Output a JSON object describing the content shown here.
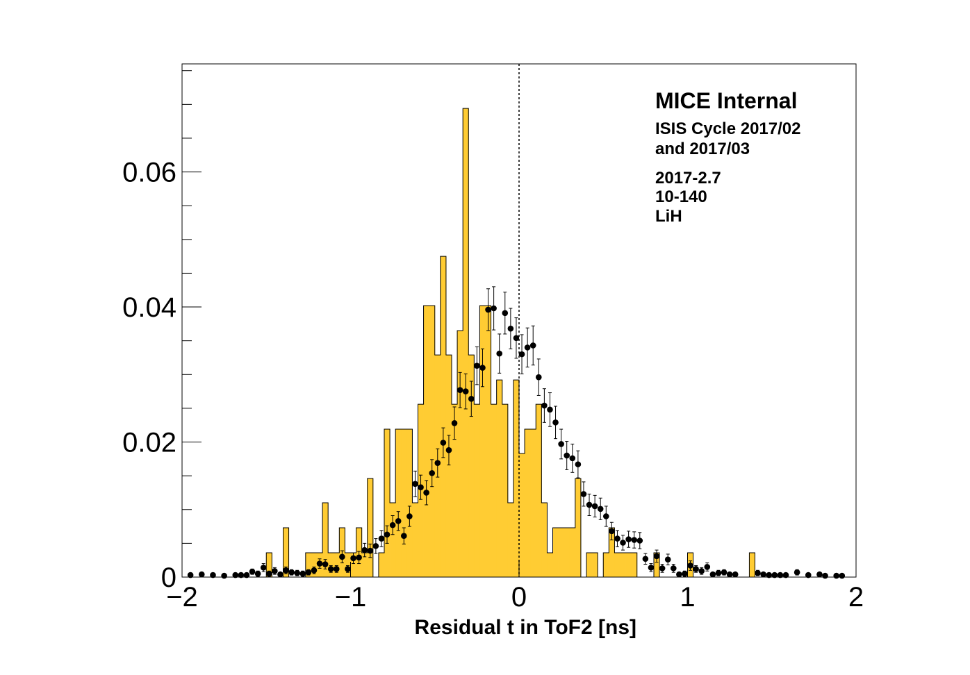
{
  "chart_data": {
    "type": "histogram",
    "xlabel": "Residual t in ToF2 [ns]",
    "annotations": [
      "MICE Internal",
      "ISIS Cycle 2017/02",
      "and 2017/03",
      "2017-2.7",
      "10-140",
      "LiH"
    ],
    "color": "#ffcc33",
    "vline": 0,
    "bins": [
      -2,
      -1.9667,
      -1.9333,
      -1.9,
      -1.8667,
      -1.8333,
      -1.8,
      -1.7667,
      -1.7333,
      -1.7,
      -1.6667,
      -1.6333,
      -1.6,
      -1.5667,
      -1.5333,
      -1.5,
      -1.4667,
      -1.4333,
      -1.4,
      -1.3667,
      -1.3333,
      -1.3,
      -1.2667,
      -1.2333,
      -1.2,
      -1.1667,
      -1.1333,
      -1.1,
      -1.0667,
      -1.0333,
      -1,
      -0.9667,
      -0.9333,
      -0.9,
      -0.8667,
      -0.8333,
      -0.8,
      -0.7667,
      -0.7333,
      -0.7,
      -0.6667,
      -0.6333,
      -0.6,
      -0.5667,
      -0.5333,
      -0.5,
      -0.4667,
      -0.4333,
      -0.4,
      -0.3667,
      -0.3333,
      -0.3,
      -0.2667,
      -0.2333,
      -0.2,
      -0.1667,
      -0.1333,
      -0.1,
      -0.0667,
      -0.0333,
      0,
      0.0333,
      0.0667,
      0.1,
      0.1333,
      0.1667,
      0.2,
      0.2333,
      0.2667,
      0.3,
      0.3333,
      0.3667,
      0.4,
      0.4333,
      0.4667,
      0.5,
      0.5333,
      0.5667,
      0.6,
      0.6333,
      0.6667,
      0.7,
      0.7333,
      0.7667,
      0.8,
      0.8333,
      0.8667,
      0.9,
      0.9333,
      0.9667,
      1,
      1.0333,
      1.0667,
      1.1,
      1.1333,
      1.1667,
      1.2,
      1.2333,
      1.2667,
      1.3,
      1.3333,
      1.3667,
      1.4,
      1.4333,
      1.4667,
      1.5,
      1.5333,
      1.5667,
      1.6,
      1.6333,
      1.6667,
      1.7,
      1.7333,
      1.7667,
      1.8,
      1.8333,
      1.8667,
      1.9,
      1.9333,
      1.9667,
      2
    ],
    "values": [
      0,
      0,
      0,
      0,
      0,
      0,
      0,
      0,
      0,
      0,
      0,
      0,
      0,
      0,
      0,
      0.0036,
      0,
      0,
      0.0073,
      0,
      0,
      0,
      0.0036,
      0.0036,
      0.0036,
      0.011,
      0.0036,
      0.0036,
      0.0073,
      0.0036,
      0.0036,
      0.0073,
      0.0036,
      0.0146,
      0,
      0.0036,
      0.0219,
      0.011,
      0.0219,
      0.0219,
      0.0219,
      0.011,
      0.0256,
      0.0402,
      0.0402,
      0.0329,
      0.0475,
      0.0329,
      0.0256,
      0.0365,
      0.0694,
      0.0329,
      0.0256,
      0.0402,
      0.0402,
      0.0256,
      0.0292,
      0.0256,
      0.011,
      0.0292,
      0.0183,
      0.0219,
      0.0219,
      0.0256,
      0.011,
      0.0036,
      0.0073,
      0.0073,
      0.0073,
      0.0073,
      0.0146,
      0,
      0.0036,
      0.0036,
      0,
      0.0036,
      0.0073,
      0.0036,
      0.0036,
      0.0036,
      0.0036,
      0,
      0,
      0,
      0.0036,
      0,
      0,
      0,
      0,
      0,
      0.0036,
      0,
      0,
      0,
      0,
      0,
      0,
      0,
      0,
      0,
      0,
      0.0036,
      0,
      0,
      0,
      0,
      0,
      0,
      0,
      0,
      0,
      0,
      0,
      0,
      0,
      0,
      0,
      0,
      0,
      0
    ],
    "overlay": {
      "type": "errorbar",
      "color": "#000000",
      "values": [
        null,
        0.0003,
        null,
        0.0004,
        null,
        0.0003,
        null,
        0.0002,
        null,
        0.0003,
        0.0003,
        0.0003,
        0.0008,
        0.0005,
        0.0014,
        0.0005,
        0.0009,
        0.0004,
        0.001,
        0.0007,
        0.0006,
        0.0005,
        0.0007,
        0.001,
        0.002,
        0.0019,
        0.0012,
        0.0012,
        0.003,
        0.0012,
        0.0028,
        0.0029,
        0.004,
        0.0039,
        0.0046,
        0.0057,
        0.0063,
        0.0077,
        0.0083,
        0.0061,
        0.009,
        0.0138,
        0.0133,
        0.0125,
        0.0154,
        0.0169,
        0.0199,
        0.0188,
        0.0228,
        0.0277,
        0.0275,
        0.0264,
        0.0313,
        0.031,
        0.0396,
        0.0398,
        0.0331,
        0.0391,
        0.0368,
        0.0354,
        0.033,
        0.034,
        0.0343,
        0.0296,
        0.0254,
        0.0248,
        0.0229,
        0.0197,
        0.018,
        0.0176,
        0.0167,
        0.0123,
        0.0107,
        0.0105,
        0.0101,
        0.009,
        0.0068,
        0.0057,
        0.0051,
        0.0056,
        0.0055,
        0.0054,
        0.0027,
        0.0014,
        0.0031,
        0.0013,
        0.0026,
        0.0013,
        0.0004,
        0.0005,
        0.0017,
        0.0012,
        0.0009,
        0.0015,
        0.0004,
        0.0006,
        0.0007,
        0.0004,
        0.0004,
        null,
        null,
        null,
        0.0006,
        0.0004,
        0.0003,
        0.0003,
        0.0003,
        0.0003,
        null,
        0.0007,
        null,
        0.0003,
        null,
        0.0004,
        0.0002,
        null,
        0.0002,
        0.0002,
        null,
        null
      ],
      "errors": [
        null,
        0.0003,
        null,
        0.0003,
        null,
        0.0003,
        null,
        0.0002,
        null,
        0.0003,
        0.0003,
        0.0003,
        0.0004,
        0.0004,
        0.0006,
        0.0004,
        0.0005,
        0.0003,
        0.0005,
        0.0004,
        0.0004,
        0.0004,
        0.0004,
        0.0005,
        0.0007,
        0.0007,
        0.0005,
        0.0005,
        0.0009,
        0.0005,
        0.0008,
        0.0009,
        0.001,
        0.001,
        0.0011,
        0.0012,
        0.0013,
        0.0014,
        0.0014,
        0.0012,
        0.0015,
        0.0019,
        0.0018,
        0.0018,
        0.002,
        0.0021,
        0.0022,
        0.0022,
        0.0024,
        0.0026,
        0.0026,
        0.0026,
        0.0028,
        0.0028,
        0.0031,
        0.0032,
        0.0029,
        0.0031,
        0.003,
        0.003,
        0.0029,
        0.0029,
        0.0029,
        0.0027,
        0.0025,
        0.0025,
        0.0024,
        0.0022,
        0.0021,
        0.0021,
        0.002,
        0.0018,
        0.0016,
        0.0016,
        0.0016,
        0.0015,
        0.0013,
        0.0012,
        0.0011,
        0.0012,
        0.0012,
        0.0012,
        0.0008,
        0.0006,
        0.0009,
        0.0006,
        0.0008,
        0.0006,
        0.0003,
        0.0004,
        0.0007,
        0.0005,
        0.0005,
        0.0006,
        0.0003,
        0.0004,
        0.0004,
        0.0003,
        0.0003,
        null,
        null,
        null,
        0.0004,
        0.0003,
        0.0003,
        0.0003,
        0.0003,
        0.0003,
        null,
        0.0004,
        null,
        0.0003,
        null,
        0.0003,
        0.0002,
        null,
        0.0002,
        0.0002,
        null,
        null
      ]
    },
    "xlim": [
      -2,
      2
    ],
    "ylim": [
      0,
      0.076
    ],
    "xticks": [
      {
        "value": -2,
        "label": "−2"
      },
      {
        "value": -1,
        "label": "−1"
      },
      0,
      1,
      2
    ],
    "yticks": [
      0,
      0.02,
      0.04,
      0.06
    ],
    "yminorticks": [
      0.005,
      0.01,
      0.015,
      0.025,
      0.03,
      0.035,
      0.045,
      0.05,
      0.055,
      0.065,
      0.07,
      0.075
    ]
  }
}
